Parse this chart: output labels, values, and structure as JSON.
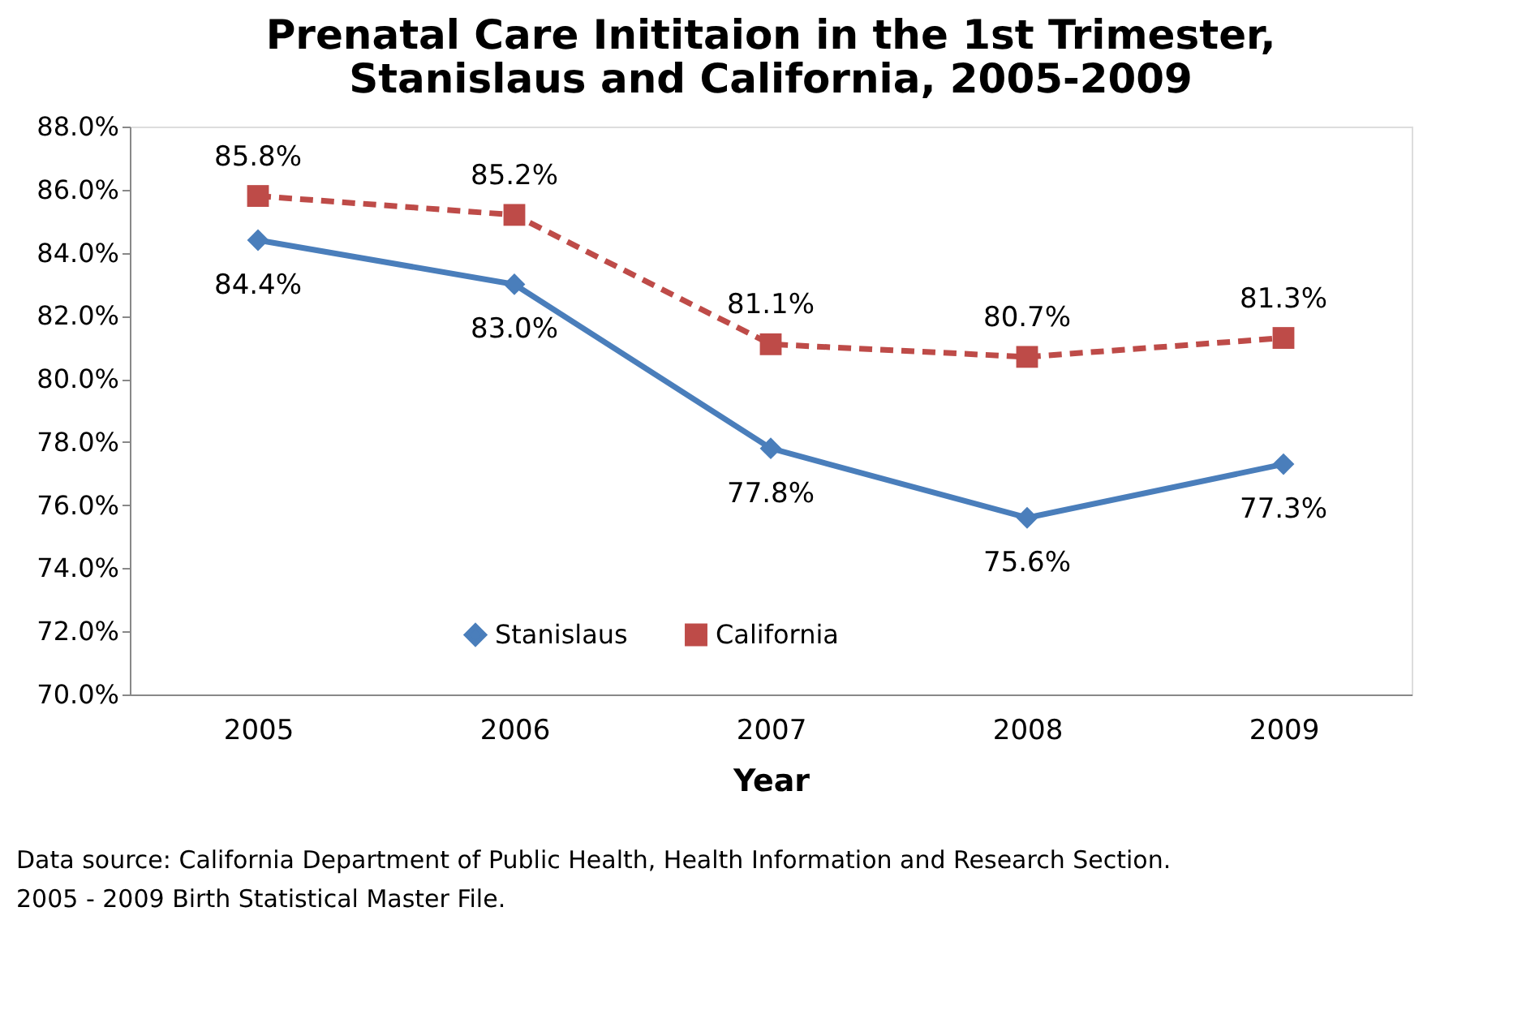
{
  "chart_data": {
    "type": "line",
    "title": "Prenatal Care Inititaion in the 1st Trimester,\nStanislaus and California, 2005-2009",
    "categories": [
      "2005",
      "2006",
      "2007",
      "2008",
      "2009"
    ],
    "xlabel": "Year",
    "series": [
      {
        "name": "Stanislaus",
        "color": "#4a7ebb",
        "values": [
          84.4,
          83.0,
          77.8,
          75.6,
          77.3
        ],
        "value_labels": [
          "84.4%",
          "83.0%",
          "77.8%",
          "75.6%",
          "77.3%"
        ],
        "marker": "diamond",
        "line_style": "solid"
      },
      {
        "name": "California",
        "color": "#be4b48",
        "values": [
          85.8,
          85.2,
          81.1,
          80.7,
          81.3
        ],
        "value_labels": [
          "85.8%",
          "85.2%",
          "81.1%",
          "80.7%",
          "81.3%"
        ],
        "marker": "square",
        "line_style": "dashed"
      }
    ],
    "ylim": [
      70,
      88
    ],
    "yticks": [
      {
        "value": 70,
        "label": "70.0%"
      },
      {
        "value": 72,
        "label": "72.0%"
      },
      {
        "value": 74,
        "label": "74.0%"
      },
      {
        "value": 76,
        "label": "76.0%"
      },
      {
        "value": 78,
        "label": "78.0%"
      },
      {
        "value": 80,
        "label": "80.0%"
      },
      {
        "value": 82,
        "label": "82.0%"
      },
      {
        "value": 84,
        "label": "84.0%"
      },
      {
        "value": 86,
        "label": "86.0%"
      },
      {
        "value": 88,
        "label": "88.0%"
      }
    ],
    "grid": false,
    "legend": "bottom",
    "annotations": [
      "Data source: California Department of Public Health, Health Information and Research Section.",
      "2005 - 2009 Birth Statistical  Master File."
    ]
  }
}
